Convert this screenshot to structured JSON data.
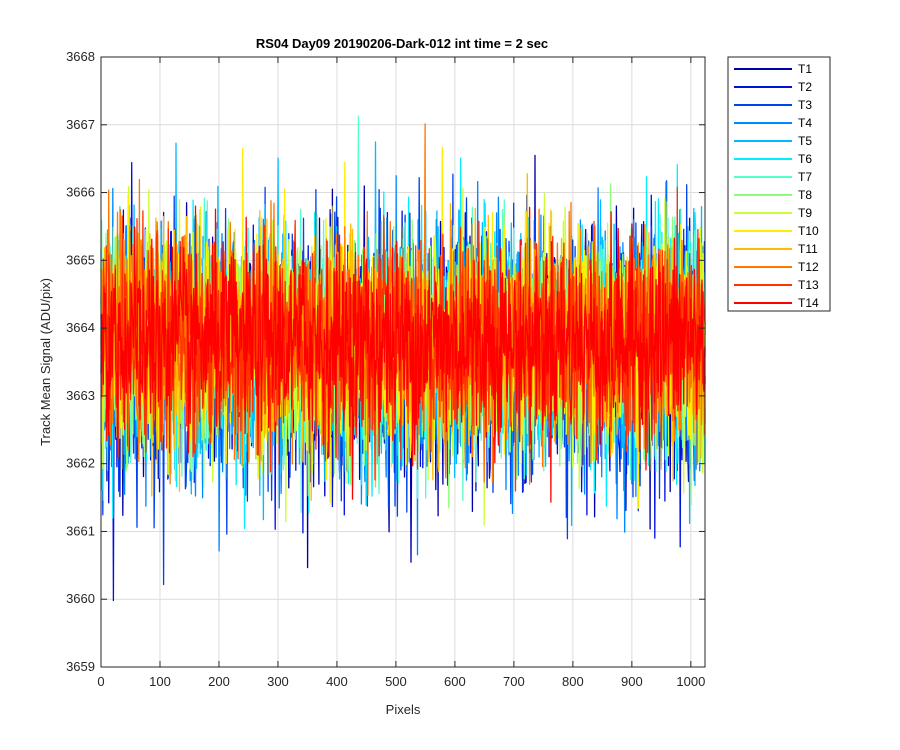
{
  "chart_data": {
    "type": "line",
    "title": "RS04 Day09 20190206-Dark-012 int time = 2 sec",
    "xlabel": "Pixels",
    "ylabel": "Track Mean Signal (ADU/pix)",
    "xlim": [
      0,
      1024
    ],
    "ylim": [
      3659,
      3668
    ],
    "xticks": [
      0,
      100,
      200,
      300,
      400,
      500,
      600,
      700,
      800,
      900,
      1000
    ],
    "yticks": [
      3659,
      3660,
      3661,
      3662,
      3663,
      3664,
      3665,
      3666,
      3667,
      3668
    ],
    "grid": true,
    "legend_position": "outside-top-right",
    "x_points": 1024,
    "noise_center": 3663.7,
    "series": [
      {
        "name": "T1",
        "color": "#0000AA",
        "mean": 3663.6,
        "std": 0.9
      },
      {
        "name": "T2",
        "color": "#0011DD",
        "mean": 3663.6,
        "std": 0.9
      },
      {
        "name": "T3",
        "color": "#0044EE",
        "mean": 3663.6,
        "std": 0.9
      },
      {
        "name": "T4",
        "color": "#0088FF",
        "mean": 3663.7,
        "std": 0.9
      },
      {
        "name": "T5",
        "color": "#00BBFF",
        "mean": 3663.7,
        "std": 0.85
      },
      {
        "name": "T6",
        "color": "#00EEFF",
        "mean": 3663.7,
        "std": 0.85
      },
      {
        "name": "T7",
        "color": "#55FFCC",
        "mean": 3663.7,
        "std": 0.8
      },
      {
        "name": "T8",
        "color": "#88FF77",
        "mean": 3663.7,
        "std": 0.8
      },
      {
        "name": "T9",
        "color": "#CCFF33",
        "mean": 3663.8,
        "std": 0.8
      },
      {
        "name": "T10",
        "color": "#FFEE00",
        "mean": 3663.8,
        "std": 0.8
      },
      {
        "name": "T11",
        "color": "#FFBB00",
        "mean": 3663.8,
        "std": 0.75
      },
      {
        "name": "T12",
        "color": "#FF7700",
        "mean": 3663.8,
        "std": 0.75
      },
      {
        "name": "T13",
        "color": "#FF3300",
        "mean": 3663.8,
        "std": 0.75
      },
      {
        "name": "T14",
        "color": "#FF0000",
        "mean": 3663.8,
        "std": 0.7
      }
    ]
  }
}
